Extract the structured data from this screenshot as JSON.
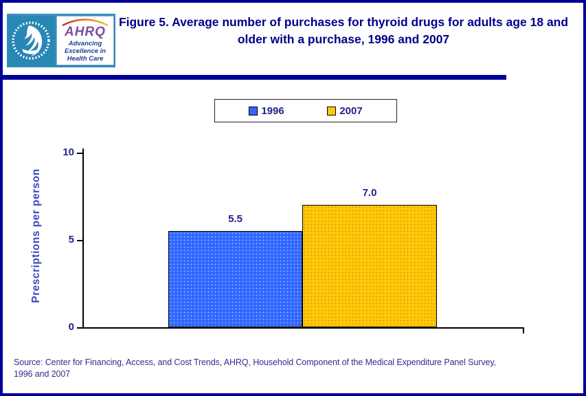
{
  "header": {
    "ahrq_acronym": "AHRQ",
    "ahrq_tagline": "Advancing Excellence in Health Care"
  },
  "legend": {
    "items": [
      {
        "label": "1996",
        "color": "#3366FF"
      },
      {
        "label": "2007",
        "color": "#FFC90A"
      }
    ]
  },
  "chart_data": {
    "type": "bar",
    "title": "Figure 5. Average number of purchases for thyroid drugs for adults age 18 and older with a purchase, 1996 and 2007",
    "categories": [
      "1996",
      "2007"
    ],
    "values": [
      5.5,
      7.0
    ],
    "value_labels": [
      "5.5",
      "7.0"
    ],
    "series_colors": [
      "#3366FF",
      "#FFC90A"
    ],
    "xlabel": "",
    "ylabel": "Prescriptions per person",
    "ylim": [
      0,
      10
    ],
    "yticks": [
      "0",
      "5",
      "10"
    ],
    "grid": false,
    "legend_position": "top-center"
  },
  "source": {
    "line1": "Source: Center for Financing, Access, and Cost Trends, AHRQ, Household Component of the Medical Expenditure Panel Survey,",
    "line2": "1996 and 2007"
  },
  "colors": {
    "page_border": "#000099",
    "header_rule": "#000099",
    "title_text": "#00008B",
    "axis_text": "#22228B",
    "ylabel_text": "#3949C0",
    "source_text": "#2F2F8F",
    "seal_teal": "#2787B5",
    "ahrq_purple": "#7B4F9E"
  }
}
